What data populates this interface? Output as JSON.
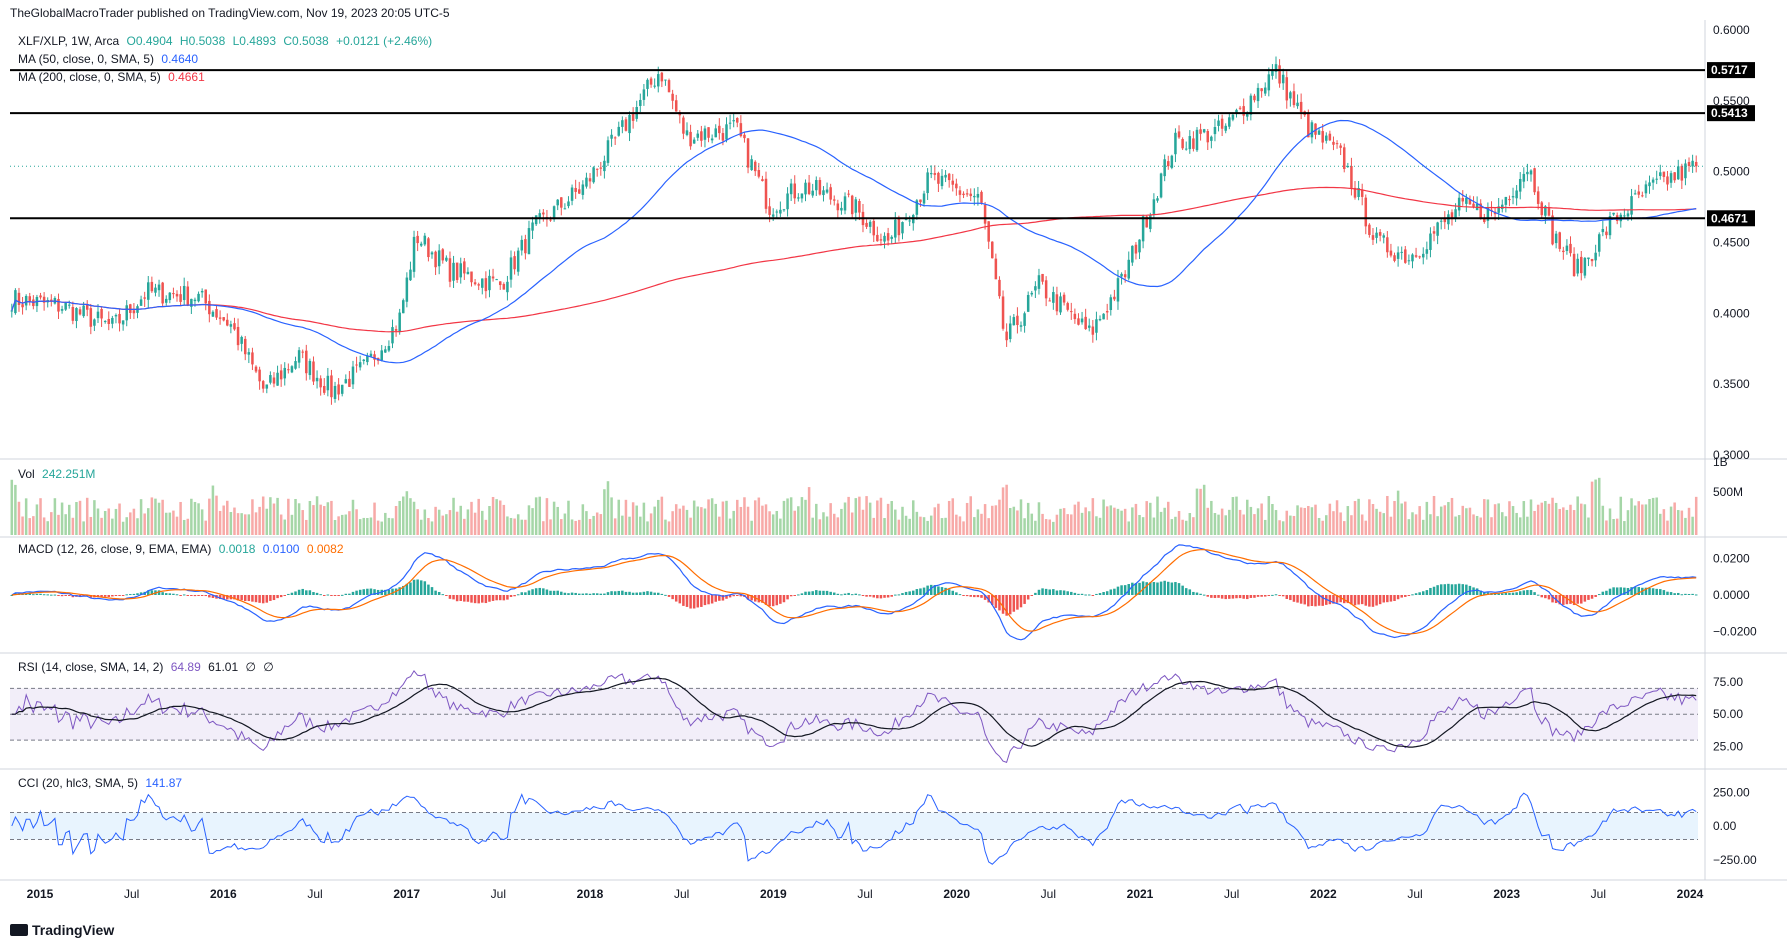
{
  "header": {
    "publisher": "TheGlobalMacroTrader published on TradingView.com, Nov 19, 2023 20:05 UTC-5"
  },
  "footer": {
    "brand": "TradingView"
  },
  "legends": {
    "main": {
      "symbol": "XLF/XLP, 1W, Arca",
      "o": "O0.4904",
      "h": "H0.5038",
      "l": "L0.4893",
      "c": "C0.5038",
      "chg": "+0.0121 (+2.46%)"
    },
    "ma50": {
      "label": "MA (50, close, 0, SMA, 5)",
      "value": "0.4640"
    },
    "ma200": {
      "label": "MA (200, close, 0, SMA, 5)",
      "value": "0.4661"
    },
    "vol": {
      "label": "Vol",
      "value": "242.251M"
    },
    "macd": {
      "label": "MACD (12, 26, close, 9, EMA, EMA)",
      "v1": "0.0018",
      "v2": "0.0100",
      "v3": "0.0082"
    },
    "rsi": {
      "label": "RSI (14, close, SMA, 14, 2)",
      "v1": "64.89",
      "v2": "61.01",
      "v3": "∅",
      "v4": "∅"
    },
    "cci": {
      "label": "CCI (20, hlc3, SMA, 5)",
      "value": "141.87"
    }
  },
  "colors": {
    "up": "#26a69a",
    "down": "#ef5350",
    "ma50": "#2962ff",
    "ma200": "#f23645",
    "macd": "#2962ff",
    "signal": "#ff6d00",
    "rsi": "#7e57c2",
    "cci": "#2962ff"
  },
  "chart_data": {
    "type": "candlestick",
    "symbol": "XLF/XLP",
    "timeframe": "1W",
    "x_labels": [
      "2015",
      "Jul",
      "2016",
      "Jul",
      "2017",
      "Jul",
      "2018",
      "Jul",
      "2019",
      "Jul",
      "2020",
      "Jul",
      "2021",
      "Jul",
      "2022",
      "Jul",
      "2023",
      "Jul",
      "2024"
    ],
    "price_axis": {
      "ticks": [
        "0.6000",
        "0.5500",
        "0.5000",
        "0.4500",
        "0.4000",
        "0.3500",
        "0.3000"
      ],
      "ylim": [
        0.3,
        0.6
      ]
    },
    "horizontal_levels": [
      {
        "value": 0.5717,
        "label": "0.5717"
      },
      {
        "value": 0.5413,
        "label": "0.5413"
      },
      {
        "value": 0.4671,
        "label": "0.4671"
      }
    ],
    "last_price": 0.5038,
    "close_anchors": [
      [
        0,
        0.41
      ],
      [
        0.03,
        0.405
      ],
      [
        0.06,
        0.39
      ],
      [
        0.08,
        0.415
      ],
      [
        0.11,
        0.412
      ],
      [
        0.13,
        0.392
      ],
      [
        0.15,
        0.345
      ],
      [
        0.17,
        0.37
      ],
      [
        0.19,
        0.345
      ],
      [
        0.21,
        0.362
      ],
      [
        0.23,
        0.395
      ],
      [
        0.24,
        0.455
      ],
      [
        0.26,
        0.43
      ],
      [
        0.29,
        0.42
      ],
      [
        0.31,
        0.46
      ],
      [
        0.34,
        0.49
      ],
      [
        0.36,
        0.525
      ],
      [
        0.385,
        0.572
      ],
      [
        0.4,
        0.525
      ],
      [
        0.43,
        0.53
      ],
      [
        0.45,
        0.475
      ],
      [
        0.47,
        0.49
      ],
      [
        0.5,
        0.475
      ],
      [
        0.52,
        0.45
      ],
      [
        0.545,
        0.495
      ],
      [
        0.575,
        0.48
      ],
      [
        0.59,
        0.38
      ],
      [
        0.61,
        0.42
      ],
      [
        0.64,
        0.385
      ],
      [
        0.66,
        0.425
      ],
      [
        0.69,
        0.52
      ],
      [
        0.72,
        0.53
      ],
      [
        0.75,
        0.572
      ],
      [
        0.77,
        0.53
      ],
      [
        0.79,
        0.51
      ],
      [
        0.81,
        0.45
      ],
      [
        0.83,
        0.44
      ],
      [
        0.86,
        0.475
      ],
      [
        0.88,
        0.47
      ],
      [
        0.9,
        0.505
      ],
      [
        0.915,
        0.455
      ],
      [
        0.93,
        0.43
      ],
      [
        0.95,
        0.465
      ],
      [
        0.975,
        0.49
      ],
      [
        1.0,
        0.5038
      ]
    ],
    "volume": {
      "ticks": [
        "1B",
        "500M"
      ],
      "last": "242.251M"
    },
    "macd": {
      "ticks": [
        "0.0200",
        "0.0000",
        "−0.0200"
      ],
      "ylim": [
        -0.03,
        0.03
      ]
    },
    "rsi": {
      "ticks": [
        "75.00",
        "50.00",
        "25.00"
      ],
      "ylim": [
        10,
        95
      ],
      "band": [
        30,
        70
      ]
    },
    "cci": {
      "ticks": [
        "250.00",
        "0.00",
        "−250.00"
      ],
      "ylim": [
        -400,
        400
      ],
      "band": [
        -100,
        100
      ]
    }
  }
}
